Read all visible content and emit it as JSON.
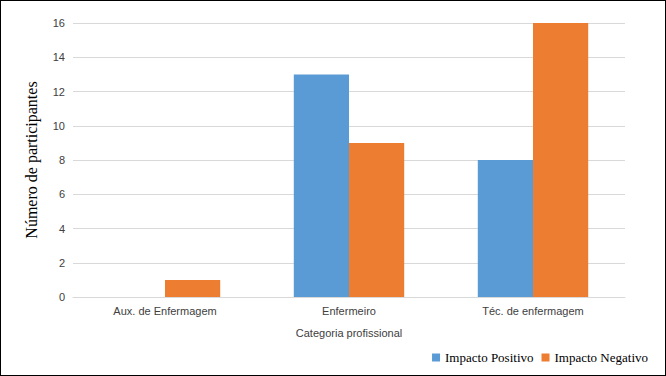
{
  "chart_data": {
    "type": "bar",
    "categories": [
      "Aux. de Enfermagem",
      "Enfermeiro",
      "Téc. de enfermagem"
    ],
    "series": [
      {
        "name": "Impacto Positivo",
        "color": "#5b9bd5",
        "values": [
          0,
          13,
          8
        ]
      },
      {
        "name": "Impacto Negativo",
        "color": "#ed7d31",
        "values": [
          1,
          9,
          16
        ]
      }
    ],
    "xlabel": "Categoria profissional",
    "ylabel": "Número de participantes",
    "ylim": [
      0,
      16
    ],
    "yticks": [
      0,
      2,
      4,
      6,
      8,
      10,
      12,
      14,
      16
    ],
    "grid": true,
    "legend": "lower right"
  }
}
